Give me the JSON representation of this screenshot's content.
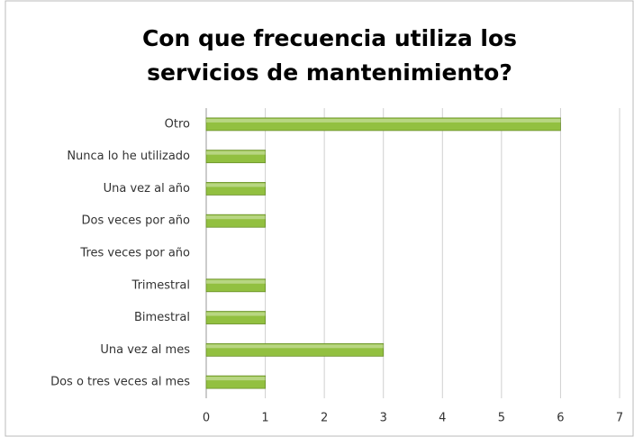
{
  "chart_data": {
    "type": "barh",
    "title": [
      "Con que frecuencia utiliza los",
      "servicios de mantenimiento?"
    ],
    "categories": [
      "Otro",
      "Nunca lo he utilizado",
      "Una vez al año",
      "Dos veces por año",
      "Tres veces por año",
      "Trimestral",
      "Bimestral",
      "Una vez al mes",
      "Dos o tres veces al mes"
    ],
    "values": [
      6,
      1,
      1,
      1,
      0,
      1,
      1,
      3,
      1
    ],
    "color": "#92c040",
    "xlim": [
      0,
      7
    ],
    "xticks": [
      0,
      1,
      2,
      3,
      4,
      5,
      6,
      7
    ],
    "grid": true
  }
}
